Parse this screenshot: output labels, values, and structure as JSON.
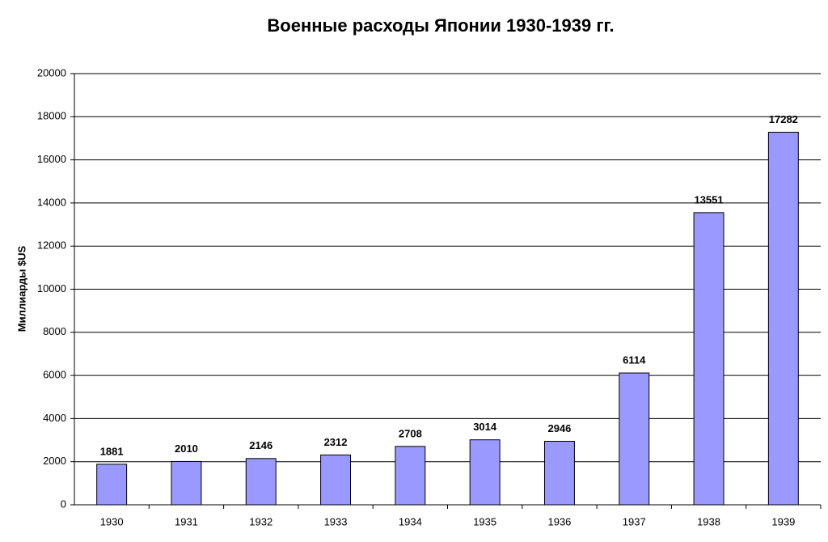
{
  "chart_data": {
    "type": "bar",
    "title": "Военные расходы Японии 1930-1939 гг.",
    "y_label": "Миллиарды $US",
    "categories": [
      "1930",
      "1931",
      "1932",
      "1933",
      "1934",
      "1935",
      "1936",
      "1937",
      "1938",
      "1939"
    ],
    "values": [
      1881,
      2010,
      2146,
      2312,
      2708,
      3014,
      2946,
      6114,
      13551,
      17282
    ],
    "color": "#9999ff",
    "ylim": [
      0,
      20000
    ],
    "yticks": [
      0,
      2000,
      4000,
      6000,
      8000,
      10000,
      12000,
      14000,
      16000,
      18000,
      20000
    ],
    "grid": true
  }
}
